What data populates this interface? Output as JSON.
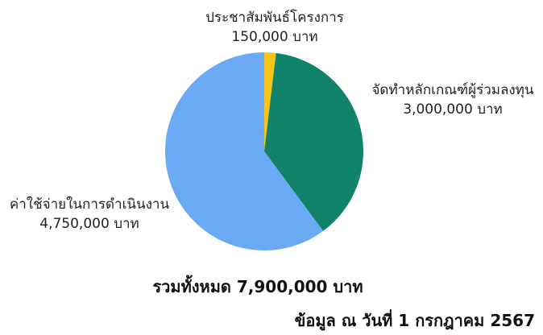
{
  "chart_data": {
    "type": "pie",
    "categories": [
      "ประชาสัมพันธ์โครงการ",
      "จัดทำหลักเกณฑ์ผู้ร่วมลงทุน",
      "ค่าใช้จ่ายในการดำเนินงาน"
    ],
    "values": [
      150000,
      3000000,
      4750000
    ],
    "value_labels": [
      "150,000 บาท",
      "3,000,000 บาท",
      "4,750,000 บาท"
    ],
    "colors": [
      "#F5C518",
      "#11836A",
      "#6AA9F4"
    ],
    "start_angle_deg": 0,
    "direction": "clockwise",
    "legend": "none",
    "total_label": "รวมทั้งหมด 7,900,000 บาท",
    "source_note": "ข้อมูล ณ วันที่ 1 กรกฎาคม 2567"
  }
}
